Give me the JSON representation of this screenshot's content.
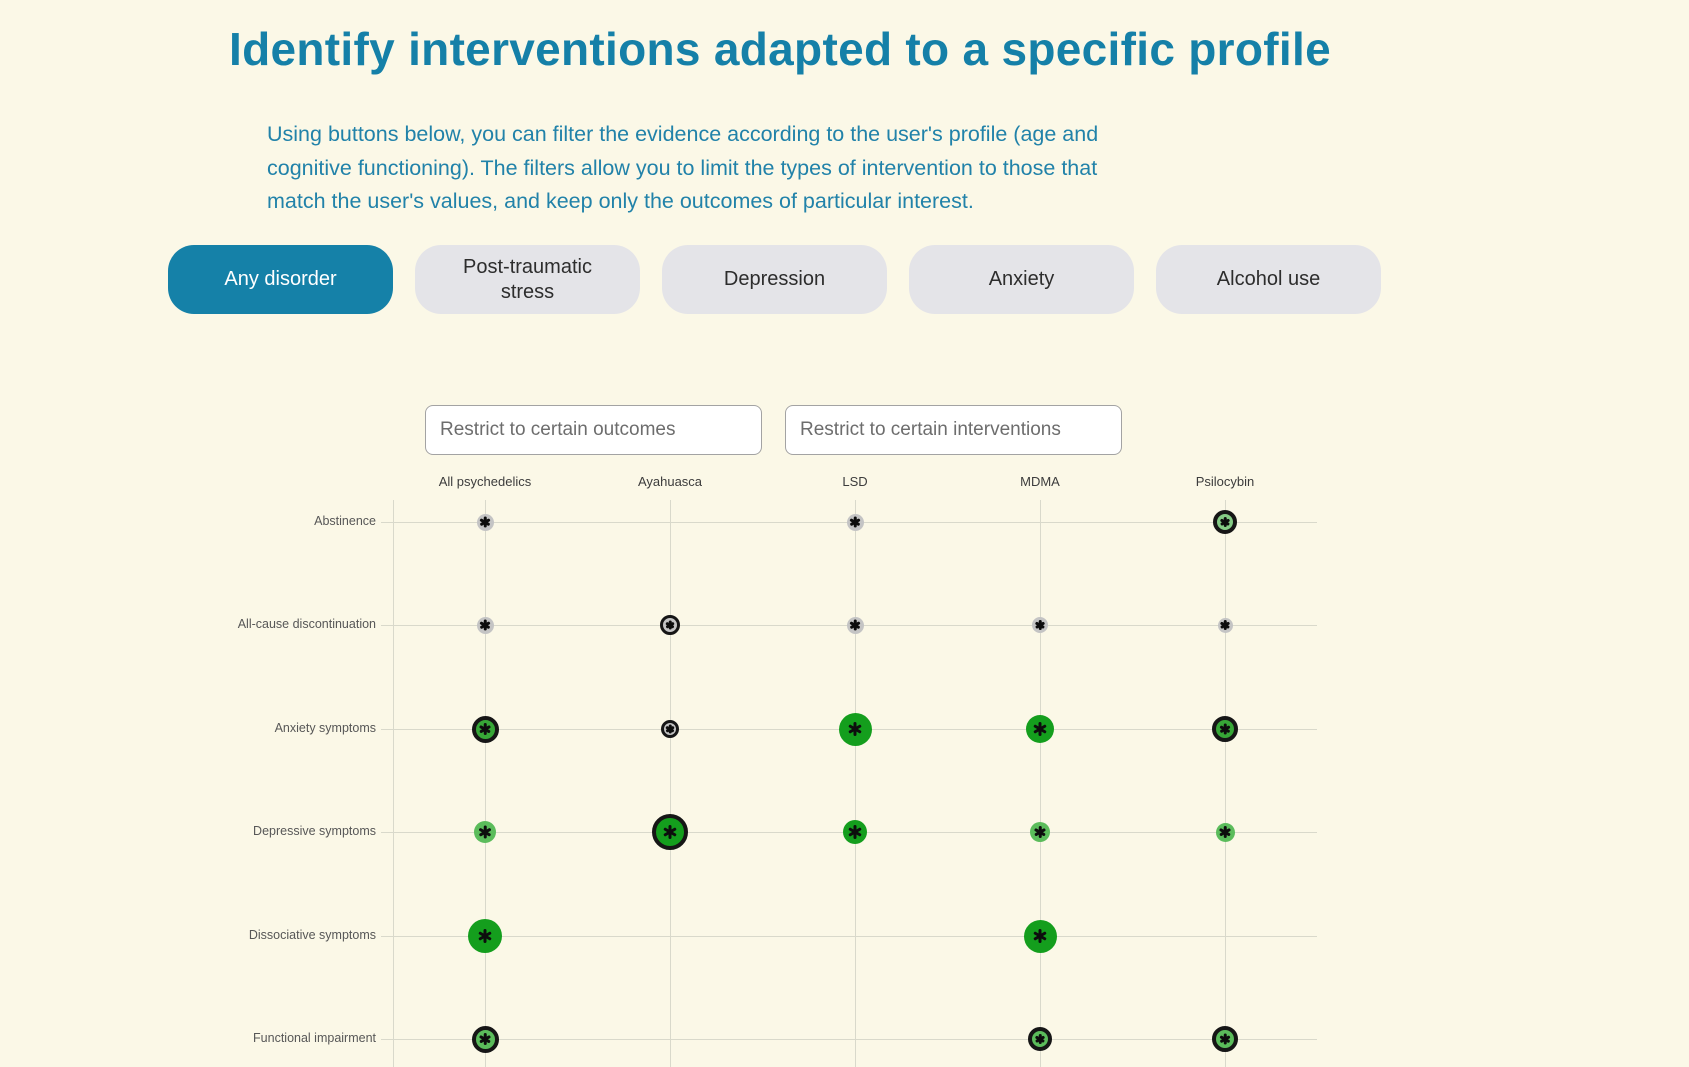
{
  "page": {
    "title": "Identify interventions adapted to a specific profile",
    "description_lines": [
      "Using buttons below, you can filter the evidence according to the user's profile (age and",
      "cognitive functioning). The filters allow you to limit the types of intervention to those that",
      "match the user's values, and keep only the outcomes of particular interest."
    ]
  },
  "filters": {
    "buttons": [
      {
        "label": "Any disorder",
        "active": true
      },
      {
        "label": "Post-traumatic stress",
        "active": false
      },
      {
        "label": "Depression",
        "active": false
      },
      {
        "label": "Anxiety",
        "active": false
      },
      {
        "label": "Alcohol use",
        "active": false
      }
    ]
  },
  "search": {
    "outcomes_placeholder": "Restrict to certain outcomes",
    "interventions_placeholder": "Restrict to certain interventions"
  },
  "palette": {
    "accent": "#1581a8",
    "gray": "#c4c4c4",
    "pale-green": "#85cc85",
    "light-green": "#5bbc5b",
    "mid-green": "#37a737",
    "green": "#149e1d",
    "outline": "#161616",
    "grid": "#d9d9cb",
    "background": "#fbf8e7"
  },
  "chart_data": {
    "type": "scatter",
    "subtype": "evidence-bubble-matrix",
    "marker_glyph": "asterisk",
    "columns": [
      "All psychedelics",
      "Ayahuasca",
      "LSD",
      "MDMA",
      "Psilocybin"
    ],
    "rows": [
      "Abstinence",
      "All-cause discontinuation",
      "Anxiety symptoms",
      "Depressive symptoms",
      "Dissociative symptoms",
      "Functional impairment"
    ],
    "points": [
      {
        "outcome": "Abstinence",
        "intervention": "All psychedelics",
        "tone": "gray",
        "diameter": 17,
        "outlined": false
      },
      {
        "outcome": "Abstinence",
        "intervention": "LSD",
        "tone": "gray",
        "diameter": 17,
        "outlined": false
      },
      {
        "outcome": "Abstinence",
        "intervention": "Psilocybin",
        "tone": "pale-green",
        "diameter": 16,
        "outlined": true
      },
      {
        "outcome": "All-cause discontinuation",
        "intervention": "All psychedelics",
        "tone": "gray",
        "diameter": 17,
        "outlined": false
      },
      {
        "outcome": "All-cause discontinuation",
        "intervention": "Ayahuasca",
        "tone": "gray",
        "diameter": 14,
        "outlined": true
      },
      {
        "outcome": "All-cause discontinuation",
        "intervention": "LSD",
        "tone": "gray",
        "diameter": 17,
        "outlined": false
      },
      {
        "outcome": "All-cause discontinuation",
        "intervention": "MDMA",
        "tone": "gray",
        "diameter": 16,
        "outlined": false
      },
      {
        "outcome": "All-cause discontinuation",
        "intervention": "Psilocybin",
        "tone": "gray",
        "diameter": 15,
        "outlined": false
      },
      {
        "outcome": "Anxiety symptoms",
        "intervention": "All psychedelics",
        "tone": "mid-green",
        "diameter": 19,
        "outlined": true
      },
      {
        "outcome": "Anxiety symptoms",
        "intervention": "Ayahuasca",
        "tone": "gray",
        "diameter": 12,
        "outlined": true
      },
      {
        "outcome": "Anxiety symptoms",
        "intervention": "LSD",
        "tone": "green",
        "diameter": 33,
        "outlined": false
      },
      {
        "outcome": "Anxiety symptoms",
        "intervention": "MDMA",
        "tone": "green",
        "diameter": 28,
        "outlined": false
      },
      {
        "outcome": "Anxiety symptoms",
        "intervention": "Psilocybin",
        "tone": "mid-green",
        "diameter": 18,
        "outlined": true
      },
      {
        "outcome": "Depressive symptoms",
        "intervention": "All psychedelics",
        "tone": "light-green",
        "diameter": 22,
        "outlined": false
      },
      {
        "outcome": "Depressive symptoms",
        "intervention": "Ayahuasca",
        "tone": "green",
        "diameter": 28,
        "outlined": true
      },
      {
        "outcome": "Depressive symptoms",
        "intervention": "LSD",
        "tone": "green",
        "diameter": 24,
        "outlined": false
      },
      {
        "outcome": "Depressive symptoms",
        "intervention": "MDMA",
        "tone": "light-green",
        "diameter": 20,
        "outlined": false
      },
      {
        "outcome": "Depressive symptoms",
        "intervention": "Psilocybin",
        "tone": "light-green",
        "diameter": 19,
        "outlined": false
      },
      {
        "outcome": "Dissociative symptoms",
        "intervention": "All psychedelics",
        "tone": "green",
        "diameter": 34,
        "outlined": false
      },
      {
        "outcome": "Dissociative symptoms",
        "intervention": "MDMA",
        "tone": "green",
        "diameter": 33,
        "outlined": false
      },
      {
        "outcome": "Functional impairment",
        "intervention": "All psychedelics",
        "tone": "light-green",
        "diameter": 19,
        "outlined": true
      },
      {
        "outcome": "Functional impairment",
        "intervention": "MDMA",
        "tone": "light-green",
        "diameter": 16,
        "outlined": true
      },
      {
        "outcome": "Functional impairment",
        "intervention": "Psilocybin",
        "tone": "light-green",
        "diameter": 18,
        "outlined": true
      }
    ],
    "layout_hints": {
      "grid": true,
      "legend": "none",
      "column_axis_position": "top",
      "row_axis_position": "left"
    }
  }
}
